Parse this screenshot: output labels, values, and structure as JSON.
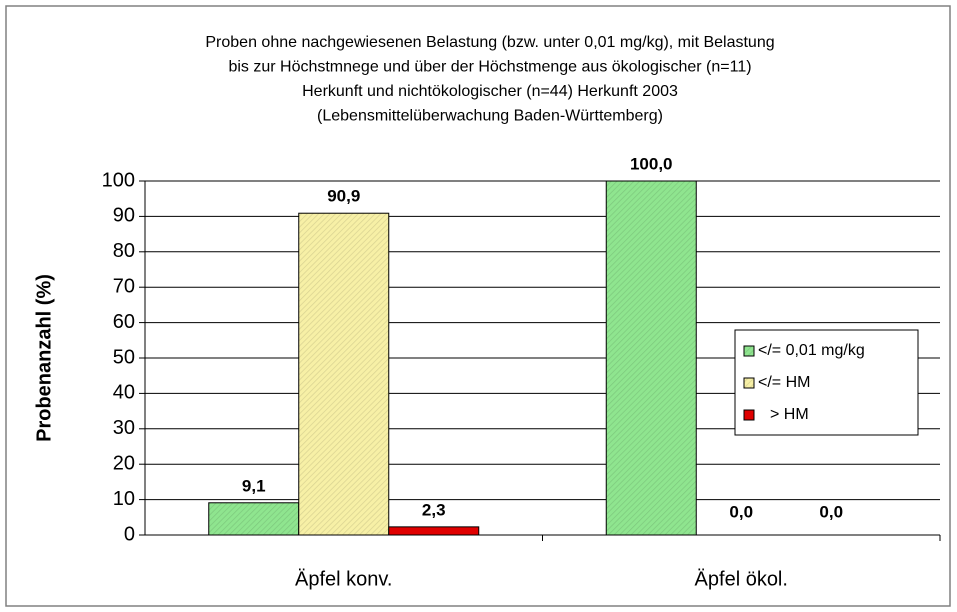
{
  "chart_data": {
    "type": "bar",
    "title": [
      "Proben ohne nachgewiesenen Belastung (bzw. unter 0,01 mg/kg), mit Belastung",
      "bis zur Höchstmnege und über der Höchstmenge aus ökologischer (n=11)",
      "Herkunft und nichtökologischer (n=44) Herkunft 2003",
      "(Lebensmittelüberwachung Baden-Württemberg)"
    ],
    "y_label": "Probenanzahl (%)",
    "categories": [
      "Äpfel konv.",
      "Äpfel ökol."
    ],
    "series": [
      {
        "name": "</= 0,01 mg/kg",
        "color": "#8fe58f",
        "values": [
          9.1,
          100.0
        ],
        "value_labels": [
          "9,1",
          "100,0"
        ]
      },
      {
        "name": "</= HM",
        "color": "#f7f0a6",
        "values": [
          90.9,
          0.0
        ],
        "value_labels": [
          "90,9",
          "0,0"
        ]
      },
      {
        "name": "> HM",
        "color": "#e00000",
        "values": [
          2.3,
          0.0
        ],
        "value_labels": [
          "2,3",
          "0,0"
        ]
      }
    ],
    "ylim": [
      0,
      100
    ],
    "yticks": [
      0,
      10,
      20,
      30,
      40,
      50,
      60,
      70,
      80,
      90,
      100
    ],
    "grid": true
  }
}
